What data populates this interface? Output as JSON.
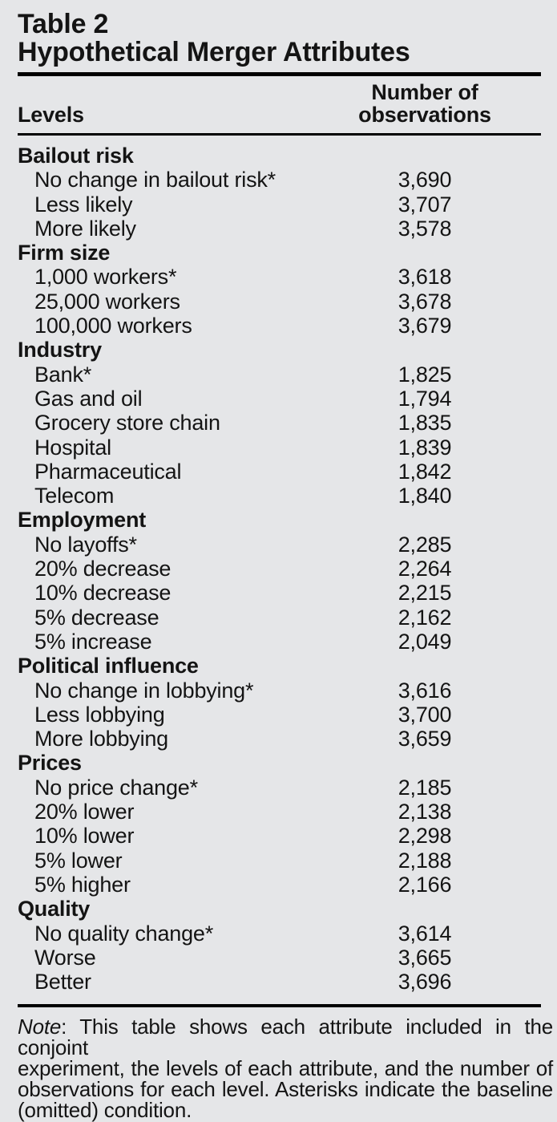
{
  "title": {
    "label": "Table 2",
    "subtitle": "Hypothetical Merger Attributes"
  },
  "header": {
    "levels": "Levels",
    "observations": "Number of\nobservations"
  },
  "sections": [
    {
      "name": "Bailout risk",
      "levels": [
        {
          "label": "No change in bailout risk*",
          "observations": "3,690"
        },
        {
          "label": "Less likely",
          "observations": "3,707"
        },
        {
          "label": "More likely",
          "observations": "3,578"
        }
      ]
    },
    {
      "name": "Firm size",
      "levels": [
        {
          "label": "1,000 workers*",
          "observations": "3,618"
        },
        {
          "label": "25,000 workers",
          "observations": "3,678"
        },
        {
          "label": "100,000 workers",
          "observations": "3,679"
        }
      ]
    },
    {
      "name": "Industry",
      "levels": [
        {
          "label": "Bank*",
          "observations": "1,825"
        },
        {
          "label": "Gas and oil",
          "observations": "1,794"
        },
        {
          "label": "Grocery store chain",
          "observations": "1,835"
        },
        {
          "label": "Hospital",
          "observations": "1,839"
        },
        {
          "label": "Pharmaceutical",
          "observations": "1,842"
        },
        {
          "label": "Telecom",
          "observations": "1,840"
        }
      ]
    },
    {
      "name": "Employment",
      "levels": [
        {
          "label": "No layoffs*",
          "observations": "2,285"
        },
        {
          "label": "20% decrease",
          "observations": "2,264"
        },
        {
          "label": "10% decrease",
          "observations": "2,215"
        },
        {
          "label": "5% decrease",
          "observations": "2,162"
        },
        {
          "label": "5% increase",
          "observations": "2,049"
        }
      ]
    },
    {
      "name": "Political influence",
      "levels": [
        {
          "label": "No change in lobbying*",
          "observations": "3,616"
        },
        {
          "label": "Less lobbying",
          "observations": "3,700"
        },
        {
          "label": "More lobbying",
          "observations": "3,659"
        }
      ]
    },
    {
      "name": "Prices",
      "levels": [
        {
          "label": "No price change*",
          "observations": "2,185"
        },
        {
          "label": "20% lower",
          "observations": "2,138"
        },
        {
          "label": "10% lower",
          "observations": "2,298"
        },
        {
          "label": "5% lower",
          "observations": "2,188"
        },
        {
          "label": "5% higher",
          "observations": "2,166"
        }
      ]
    },
    {
      "name": "Quality",
      "levels": [
        {
          "label": "No quality change*",
          "observations": "3,614"
        },
        {
          "label": "Worse",
          "observations": "3,665"
        },
        {
          "label": "Better",
          "observations": "3,696"
        }
      ]
    }
  ],
  "note": {
    "label": "Note",
    "lines": [
      ": This table shows each attribute included in the conjoint",
      "experiment, the levels of each attribute, and the number of",
      "observations for each level. Asterisks indicate the baseline",
      "(omitted) condition."
    ]
  },
  "colors": {
    "background": "#e5e6e8",
    "text": "#141414",
    "rule": "#000000"
  }
}
